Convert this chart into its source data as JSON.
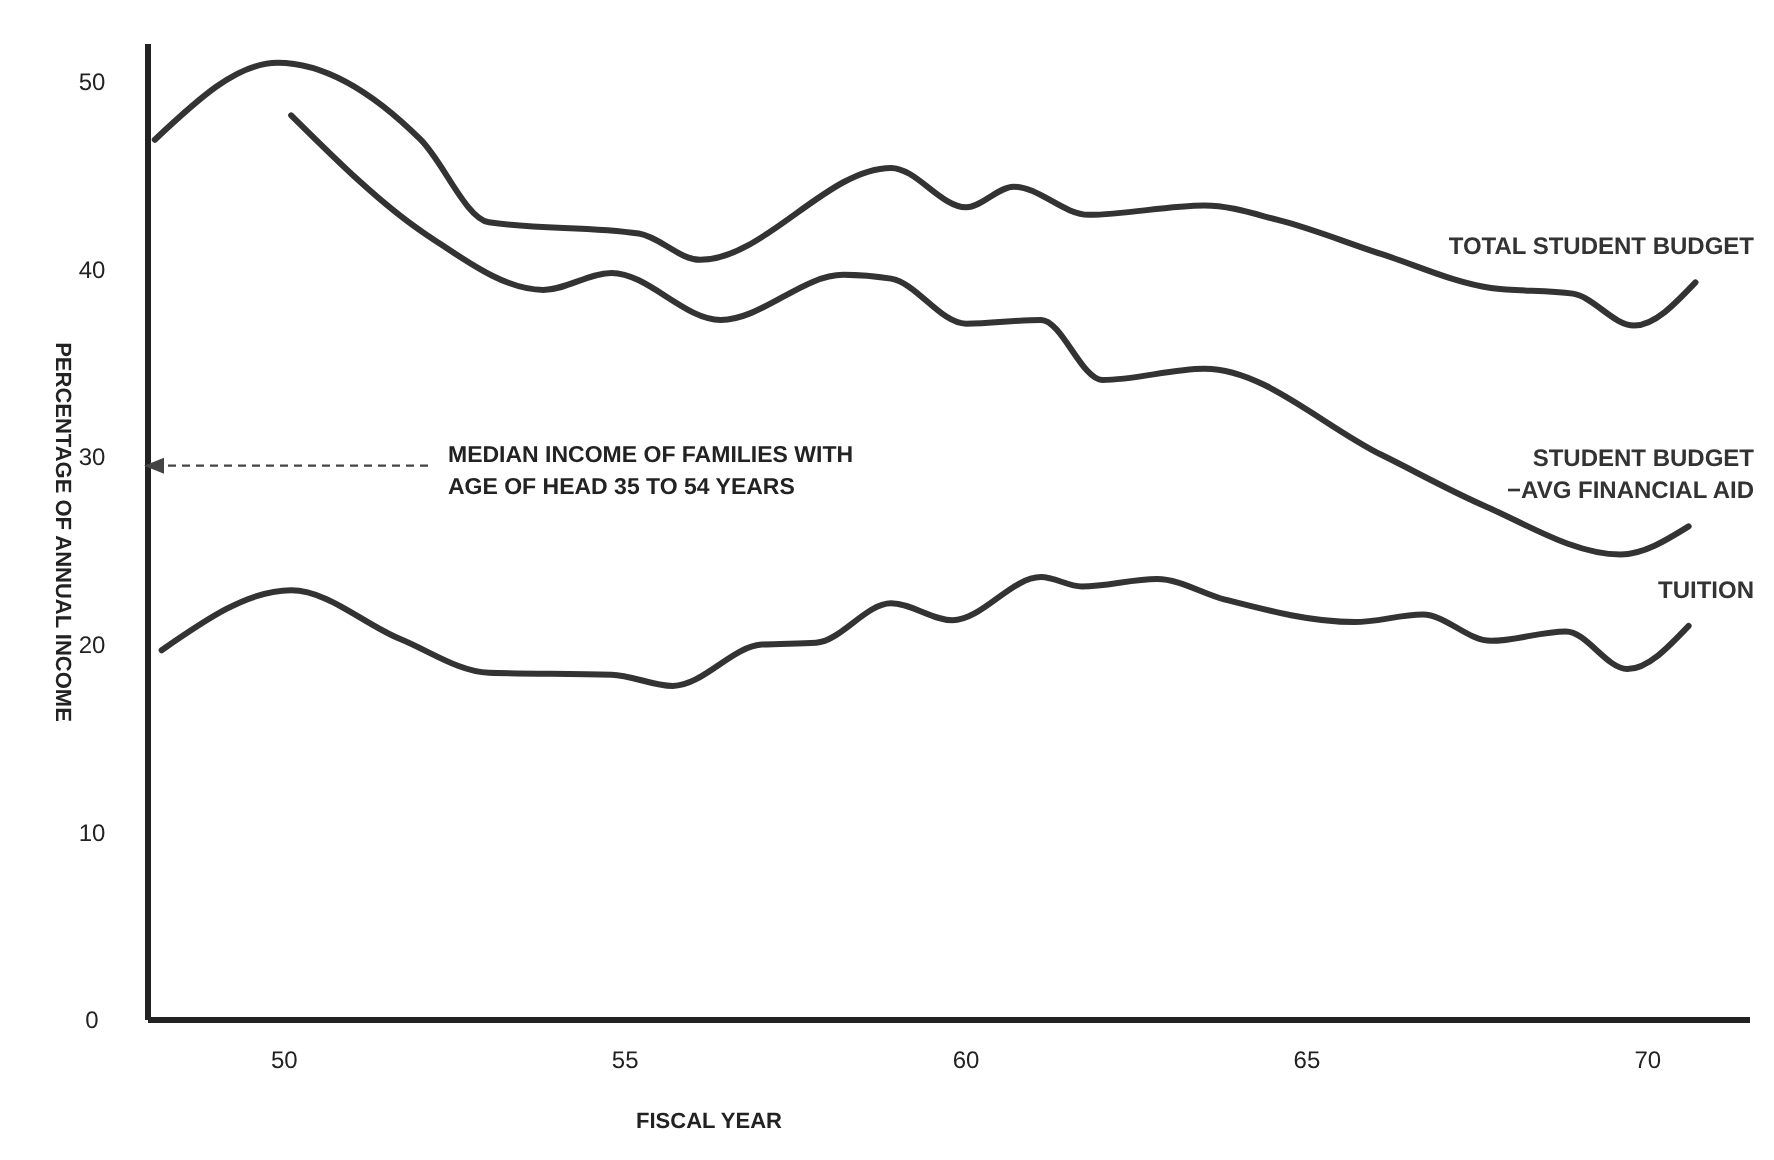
{
  "chart_data": {
    "type": "line",
    "xlabel": "FISCAL YEAR",
    "ylabel": "PERCENTAGE OF ANNUAL INCOME",
    "xlim": [
      48,
      71.5
    ],
    "xticks": [
      50,
      55,
      60,
      65,
      70
    ],
    "ylim": [
      0,
      52
    ],
    "yticks": [
      0,
      10,
      20,
      30,
      40,
      50
    ],
    "grid": false,
    "marker": "none",
    "line_style": "solid",
    "annotations": [
      "MEDIAN INCOME OF FAMILIES WITH AGE OF HEAD 35 TO 54 YEARS"
    ],
    "series": [
      {
        "name": "TOTAL STUDENT BUDGET",
        "color": "#333333",
        "x": [
          48.1,
          49.9,
          52,
          53,
          55.2,
          56.1,
          58.9,
          60,
          60.7,
          61.8,
          63.5,
          64.6,
          66.1,
          67.7,
          68.9,
          69.8,
          70.7
        ],
        "values": [
          46.9,
          51,
          46.9,
          42.5,
          41.9,
          40.5,
          45.4,
          43.3,
          44.4,
          42.9,
          43.4,
          42.6,
          40.8,
          39,
          38.7,
          37,
          39.3
        ]
      },
      {
        "name": "STUDENT BUDGET\n−AVG FINANCIAL AID",
        "color": "#333333",
        "x": [
          50.1,
          52.1,
          53.8,
          54.8,
          56.4,
          58.2,
          58.9,
          60,
          61.1,
          62,
          63.5,
          66.1,
          67.6,
          69.6,
          70.6
        ],
        "values": [
          48.2,
          41.8,
          38.9,
          39.8,
          37.3,
          39.7,
          39.5,
          37.1,
          37.3,
          34.1,
          34.7,
          30.1,
          27.4,
          24.8,
          26.3
        ]
      },
      {
        "name": "TUITION",
        "color": "#333333",
        "x": [
          48.2,
          50.1,
          51.7,
          53,
          54.8,
          55.7,
          57,
          57.8,
          58.9,
          59.8,
          61.1,
          61.7,
          62.8,
          63.8,
          65.7,
          66.7,
          67.7,
          68.8,
          69.7,
          70.6
        ],
        "values": [
          19.7,
          22.9,
          20.3,
          18.5,
          18.4,
          17.8,
          20,
          20.1,
          22.2,
          21.3,
          23.6,
          23.1,
          23.5,
          22.4,
          21.2,
          21.6,
          20.2,
          20.7,
          18.7,
          21
        ]
      }
    ]
  }
}
